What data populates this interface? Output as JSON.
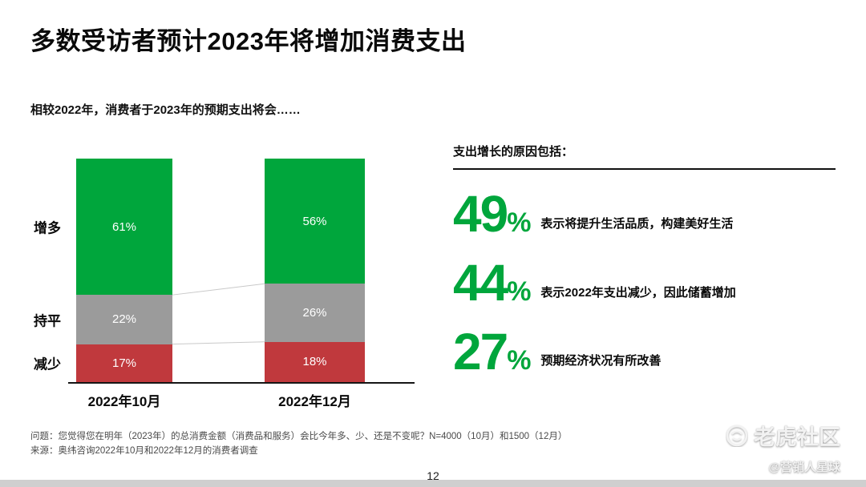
{
  "slide": {
    "title": "多数受访者预计2023年将增加消费支出",
    "subtitle": "相较2022年，消费者于2023年的预期支出将会……",
    "footnote_question": "问题：您觉得您在明年（2023年）的总消费金额（消费品和服务）会比今年多、少、还是不变呢？N=4000（10月）和1500（12月）",
    "footnote_source": "来源：奥纬咨询2022年10月和2022年12月的消费者调查",
    "page_number": "12",
    "watermark": {
      "brand": "老虎社区",
      "handle": "@营销人星球"
    }
  },
  "chart_data": {
    "type": "bar",
    "stacked": true,
    "categories": [
      "2022年10月",
      "2022年12月"
    ],
    "series": [
      {
        "name": "增多",
        "color": "#00A63C",
        "values": [
          61,
          56
        ]
      },
      {
        "name": "持平",
        "color": "#9B9B9B",
        "values": [
          22,
          26
        ]
      },
      {
        "name": "减少",
        "color": "#C0393D",
        "values": [
          17,
          18
        ]
      }
    ],
    "value_suffix": "%",
    "ylim": [
      0,
      100
    ],
    "grid": false,
    "legend_position": "left-row-labels"
  },
  "reasons": {
    "heading": "支出增长的原因包括：",
    "items": [
      {
        "value": "49",
        "suffix": "%",
        "text": "表示将提升生活品质，构建美好生活"
      },
      {
        "value": "44",
        "suffix": "%",
        "text": "表示2022年支出减少，因此储蓄增加"
      },
      {
        "value": "27",
        "suffix": "%",
        "text": "预期经济状况有所改善"
      }
    ]
  },
  "colors": {
    "green": "#00A63C",
    "gray": "#9B9B9B",
    "red": "#C0393D",
    "accent_line": "#c9c9c9"
  }
}
